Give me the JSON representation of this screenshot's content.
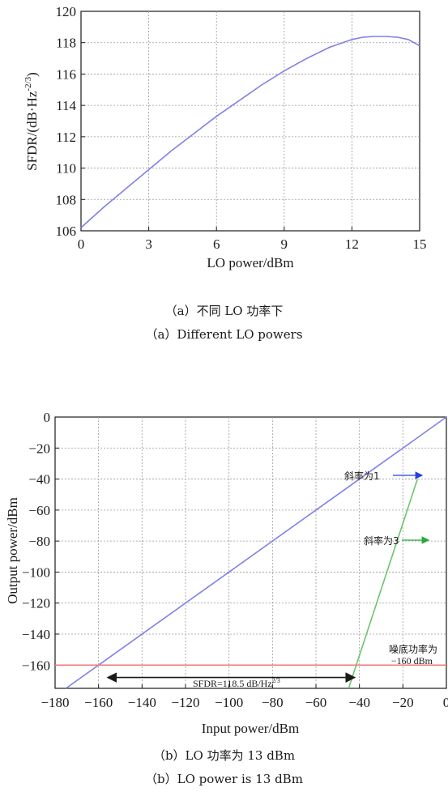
{
  "chart_data": [
    {
      "type": "line",
      "xlabel": "LO power/dBm",
      "ylabel": "SFDR/(dB·Hz",
      "ylabel_sup": "-2/3",
      "ylabel_close": ")",
      "xlim": [
        0,
        15
      ],
      "ylim": [
        106,
        120
      ],
      "xticks": [
        0,
        3,
        6,
        9,
        12,
        15
      ],
      "yticks": [
        106,
        108,
        110,
        112,
        114,
        116,
        118,
        120
      ],
      "grid": true,
      "series": [
        {
          "color": "#8080e8",
          "x": [
            0,
            1,
            2,
            3,
            4,
            5,
            6,
            7,
            8,
            9,
            10,
            11,
            12,
            12.5,
            13,
            13.5,
            14,
            14.5,
            15
          ],
          "y": [
            106.2,
            107.5,
            108.7,
            109.9,
            111.1,
            112.2,
            113.3,
            114.3,
            115.3,
            116.2,
            117.0,
            117.7,
            118.2,
            118.35,
            118.4,
            118.4,
            118.35,
            118.2,
            117.8
          ]
        }
      ]
    },
    {
      "type": "line",
      "xlabel": "Input power/dBm",
      "ylabel": "Output power/dBm",
      "xlim": [
        -180,
        0
      ],
      "ylim": [
        -175,
        0
      ],
      "xticks": [
        -180,
        -160,
        -140,
        -120,
        -100,
        -80,
        -60,
        -40,
        -20,
        0
      ],
      "yticks": [
        0,
        -20,
        -40,
        -60,
        -80,
        -100,
        -120,
        -140,
        -160
      ],
      "grid": true,
      "series": [
        {
          "color": "#8080e8",
          "x": [
            -175,
            0
          ],
          "y": [
            -175,
            0
          ]
        },
        {
          "color": "#6cc46c",
          "x": [
            -45,
            -13.3
          ],
          "y": [
            -175,
            -40
          ]
        },
        {
          "color": "#f07878",
          "x": [
            -180,
            0
          ],
          "y": [
            -160,
            -160
          ]
        }
      ],
      "annotations": {
        "slope1": "斜率为1",
        "slope3": "斜率为3",
        "noise_floor_line1": "噪底功率为",
        "noise_floor_line2": "−160 dBm",
        "sfdr_text": "SFDR=118.5 dB/Hz",
        "sfdr_sup": "2/3"
      },
      "sfdr_range": [
        -158,
        -40
      ]
    }
  ],
  "captions": {
    "a_cn": "（a）不同 LO 功率下",
    "a_en": "（a）Different LO powers",
    "b_cn": "（b）LO 功率为 13 dBm",
    "b_en": "（b）LO power is 13 dBm"
  },
  "colors": {
    "blue_arrow": "#2a3de0",
    "green_arrow": "#2aa83a",
    "grid": "#9a9a9a"
  }
}
